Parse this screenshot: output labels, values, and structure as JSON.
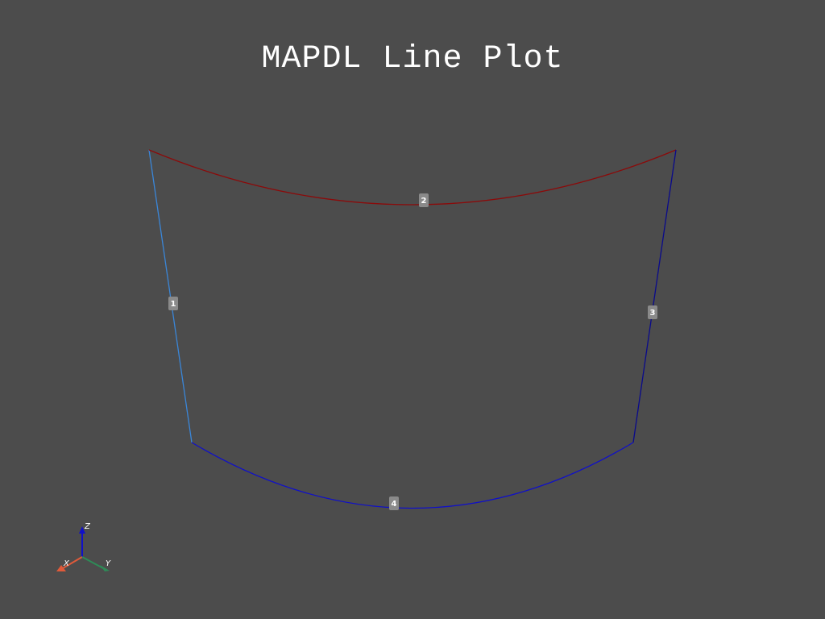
{
  "title": "MAPDL Line Plot",
  "background": "#4c4c4c",
  "lines": [
    {
      "id": "1",
      "label": "1",
      "color": "#3a86d8"
    },
    {
      "id": "2",
      "label": "2",
      "color": "#8b0a0a"
    },
    {
      "id": "3",
      "label": "3",
      "color": "#0a0a8b"
    },
    {
      "id": "4",
      "label": "4",
      "color": "#1010c8"
    }
  ],
  "axes": {
    "x": {
      "label": "X",
      "color": "#e05a3a"
    },
    "y": {
      "label": "Y",
      "color": "#2e8b57"
    },
    "z": {
      "label": "Z",
      "color": "#1010c8"
    }
  }
}
